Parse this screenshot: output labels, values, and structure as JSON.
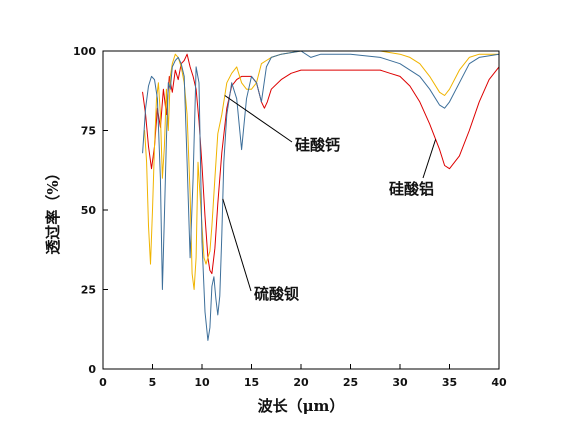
{
  "chart_data": {
    "type": "line",
    "title": "",
    "xlabel": "波长（μm）",
    "ylabel": "透过率（%）",
    "xlim": [
      0,
      40
    ],
    "ylim": [
      0,
      100
    ],
    "xticks": [
      "0",
      "5",
      "10",
      "15",
      "20",
      "25",
      "30",
      "35",
      "40"
    ],
    "yticks": [
      "0",
      "25",
      "50",
      "75",
      "100"
    ],
    "grid": false,
    "legend": "none",
    "series": [
      {
        "name": "硅酸铝",
        "color": "#dd0000",
        "x": [
          4.0,
          4.3,
          4.6,
          4.9,
          5.2,
          5.5,
          5.8,
          6.1,
          6.4,
          6.7,
          7.0,
          7.3,
          7.6,
          7.9,
          8.2,
          8.5,
          8.8,
          9.1,
          9.4,
          9.7,
          10.0,
          10.3,
          10.6,
          10.8,
          11.0,
          11.3,
          11.6,
          12.0,
          12.5,
          13.0,
          13.5,
          14.0,
          14.5,
          15.0,
          15.5,
          16.0,
          16.3,
          16.6,
          17.0,
          18.0,
          19.0,
          20.0,
          22.0,
          25.0,
          28.0,
          29.0,
          30.0,
          31.0,
          32.0,
          33.0,
          34.0,
          34.5,
          35.0,
          36.0,
          37.0,
          38.0,
          39.0,
          40.0
        ],
        "y": [
          87,
          80,
          70,
          63,
          70,
          82,
          76,
          88,
          80,
          92,
          87,
          94,
          91,
          96,
          97,
          99,
          95,
          92,
          88,
          78,
          64,
          48,
          35,
          31,
          30,
          38,
          52,
          68,
          82,
          89,
          91,
          92,
          92,
          92,
          90,
          84,
          82,
          84,
          88,
          91,
          93,
          94,
          94,
          94,
          94,
          93,
          92,
          89,
          84,
          77,
          69,
          64,
          63,
          67,
          75,
          84,
          91,
          95
        ]
      },
      {
        "name": "硅酸钙",
        "color": "#f0b400",
        "x": [
          4.2,
          4.4,
          4.6,
          4.8,
          5.0,
          5.2,
          5.4,
          5.6,
          5.8,
          6.0,
          6.2,
          6.4,
          6.6,
          6.8,
          7.0,
          7.3,
          7.6,
          7.9,
          8.2,
          8.5,
          8.8,
          9.0,
          9.2,
          9.4,
          9.6,
          9.8,
          10.0,
          10.2,
          10.4,
          10.6,
          10.8,
          11.0,
          11.3,
          11.6,
          12.0,
          12.5,
          13.0,
          13.5,
          14.0,
          14.5,
          15.0,
          15.5,
          16.0,
          16.5,
          17.0,
          18.0,
          20.0,
          22.0,
          25.0,
          28.0,
          30.0,
          31.0,
          32.0,
          33.0,
          34.0,
          34.5,
          35.0,
          36.0,
          37.0,
          38.0,
          40.0
        ],
        "y": [
          75,
          65,
          45,
          33,
          50,
          70,
          85,
          90,
          80,
          60,
          70,
          88,
          75,
          92,
          96,
          99,
          98,
          95,
          90,
          80,
          55,
          30,
          25,
          35,
          65,
          55,
          45,
          35,
          33,
          35,
          37,
          45,
          60,
          74,
          80,
          90,
          93,
          95,
          90,
          88,
          88,
          90,
          96,
          97,
          98,
          99,
          100,
          100,
          100,
          100,
          99,
          98,
          96,
          92,
          87,
          86,
          88,
          94,
          98,
          99,
          99
        ]
      },
      {
        "name": "硫酸钡",
        "color": "#3d6f9a",
        "x": [
          4.0,
          4.3,
          4.6,
          4.9,
          5.2,
          5.5,
          5.8,
          6.0,
          6.2,
          6.4,
          6.6,
          6.8,
          7.0,
          7.3,
          7.6,
          7.9,
          8.2,
          8.5,
          8.8,
          9.1,
          9.4,
          9.7,
          10.0,
          10.3,
          10.6,
          10.8,
          11.0,
          11.2,
          11.4,
          11.6,
          11.8,
          12.0,
          12.2,
          12.5,
          13.0,
          13.5,
          14.0,
          14.5,
          15.0,
          15.5,
          16.0,
          16.5,
          17.0,
          18.0,
          20.0,
          21.0,
          22.0,
          25.0,
          28.0,
          30.0,
          31.0,
          32.0,
          33.0,
          34.0,
          34.5,
          35.0,
          36.0,
          37.0,
          38.0,
          40.0
        ],
        "y": [
          68,
          82,
          89,
          92,
          91,
          85,
          60,
          25,
          48,
          72,
          90,
          88,
          95,
          97,
          98,
          96,
          92,
          65,
          35,
          60,
          95,
          90,
          40,
          18,
          9,
          13,
          26,
          29,
          22,
          17,
          23,
          42,
          65,
          80,
          90,
          85,
          69,
          85,
          92,
          90,
          84,
          95,
          98,
          99,
          100,
          98,
          99,
          99,
          98,
          96,
          94,
          92,
          88,
          83,
          82,
          84,
          90,
          96,
          98,
          99
        ]
      }
    ],
    "annotations": [
      {
        "label": "硅酸钙",
        "target_series": "硅酸钙"
      },
      {
        "label": "硅酸铝",
        "target_series": "硅酸铝"
      },
      {
        "label": "硫酸钡",
        "target_series": "硫酸钡"
      }
    ]
  }
}
